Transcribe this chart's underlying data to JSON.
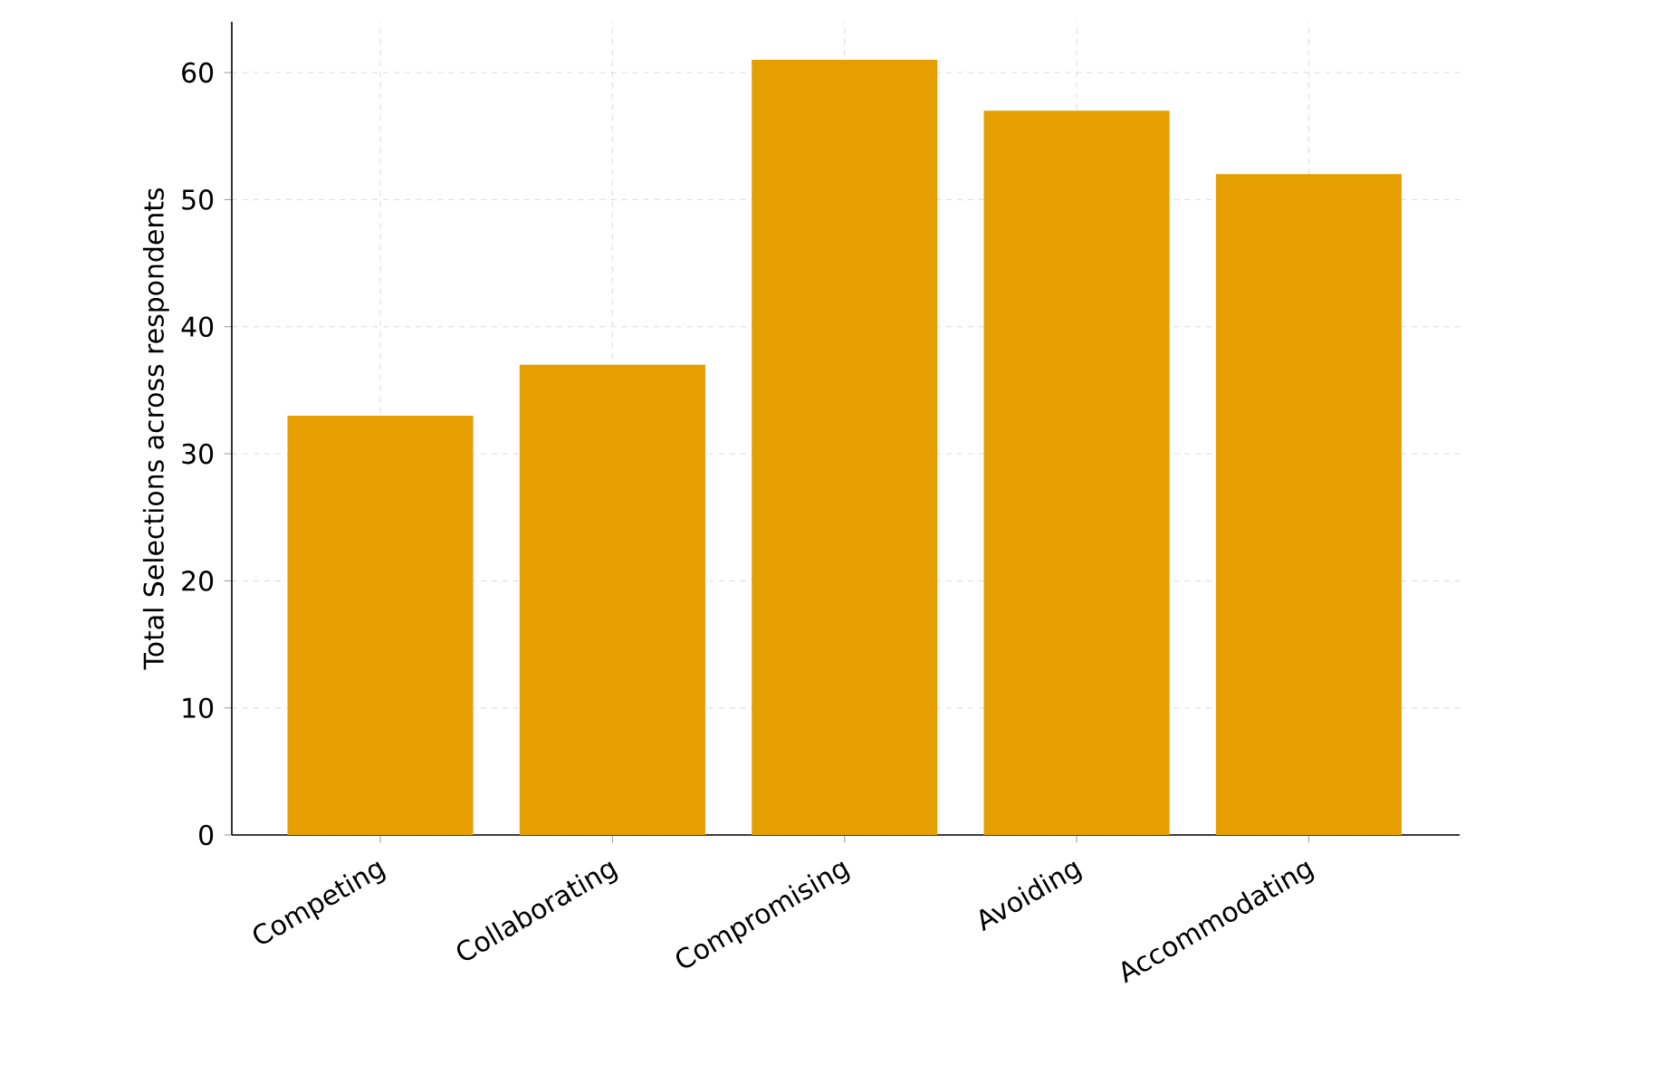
{
  "chart_data": {
    "type": "bar",
    "ylabel": "Total Selections across respondents",
    "categories": [
      "Competing",
      "Collaborating",
      "Compromising",
      "Avoiding",
      "Accommodating"
    ],
    "values": [
      33,
      37,
      61,
      57,
      52
    ],
    "color": "#e69f00",
    "ylim": [
      0,
      64
    ],
    "yticks": [
      0,
      10,
      20,
      30,
      40,
      50,
      60
    ],
    "grid": true
  }
}
